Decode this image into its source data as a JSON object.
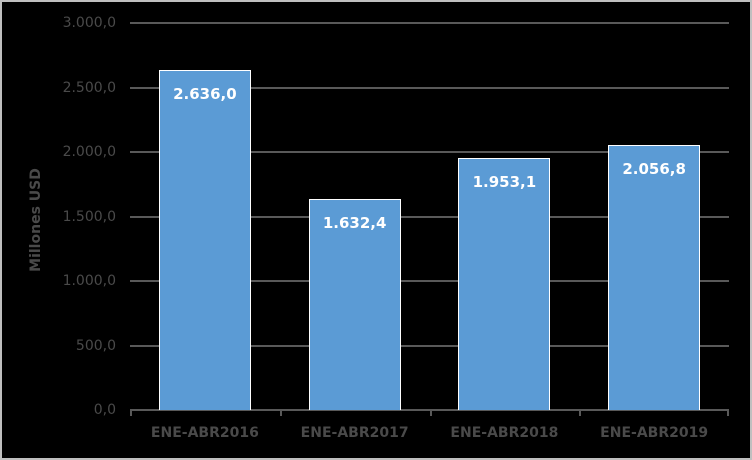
{
  "chart_data": {
    "type": "bar",
    "title": "",
    "xlabel": "",
    "ylabel": "Millones USD",
    "categories": [
      "ENE-ABR2016",
      "ENE-ABR2017",
      "ENE-ABR2018",
      "ENE-ABR2019"
    ],
    "values": [
      2636.0,
      1632.4,
      1953.1,
      2056.8
    ],
    "value_labels": [
      "2.636,0",
      "1.632,4",
      "1.953,1",
      "2.056,8"
    ],
    "ylim": [
      0,
      3000
    ],
    "yticks": [
      0,
      500,
      1000,
      1500,
      2000,
      2500,
      3000
    ],
    "ytick_labels": [
      "0,0",
      "500,0",
      "1.000,0",
      "1.500,0",
      "2.000,0",
      "2.500,0",
      "3.000,0"
    ],
    "grid": true,
    "legend": null,
    "colors": {
      "bar": "#5b9bd5",
      "background": "#000000",
      "grid": "#595959",
      "text": "#4a4a4a"
    }
  }
}
